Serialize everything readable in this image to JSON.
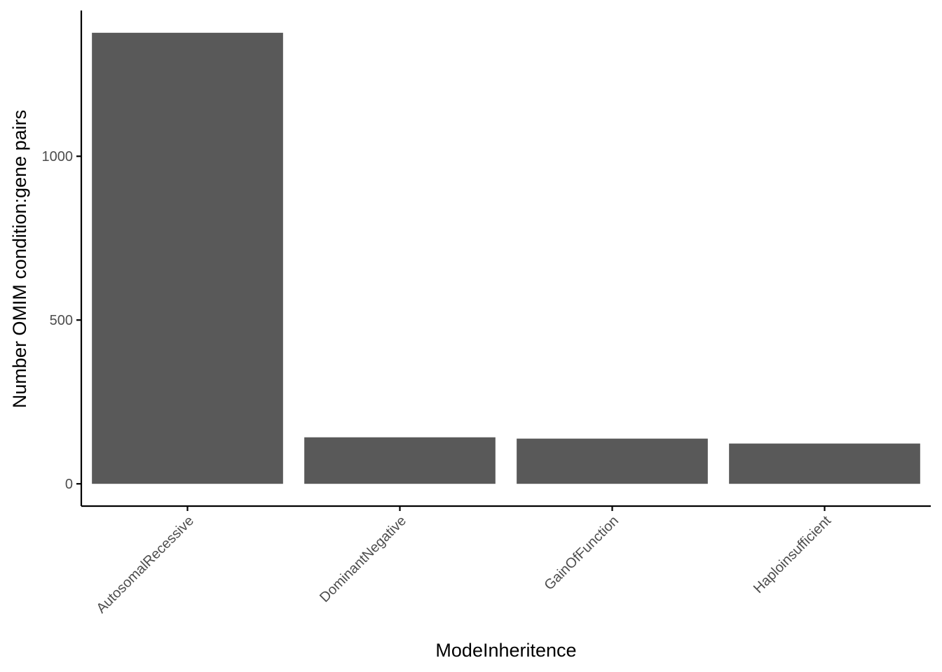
{
  "chart_data": {
    "type": "bar",
    "title": "",
    "xlabel": "ModeInheritence",
    "ylabel": "Number OMIM condition:gene pairs",
    "categories": [
      "AutosomalRecessive",
      "DominantNegative",
      "GainOfFunction",
      "Haploinsufficient"
    ],
    "values": [
      1377,
      142,
      138,
      123
    ],
    "ylim": [
      -68,
      1445
    ],
    "yticks": [
      0,
      500,
      1000
    ],
    "ytick_labels": [
      "0",
      "500",
      "1000"
    ],
    "grid": false,
    "legend": "none",
    "colors": {
      "bar": "#595959",
      "axis": "#000000",
      "tick_text": "#4d4d4d"
    }
  }
}
